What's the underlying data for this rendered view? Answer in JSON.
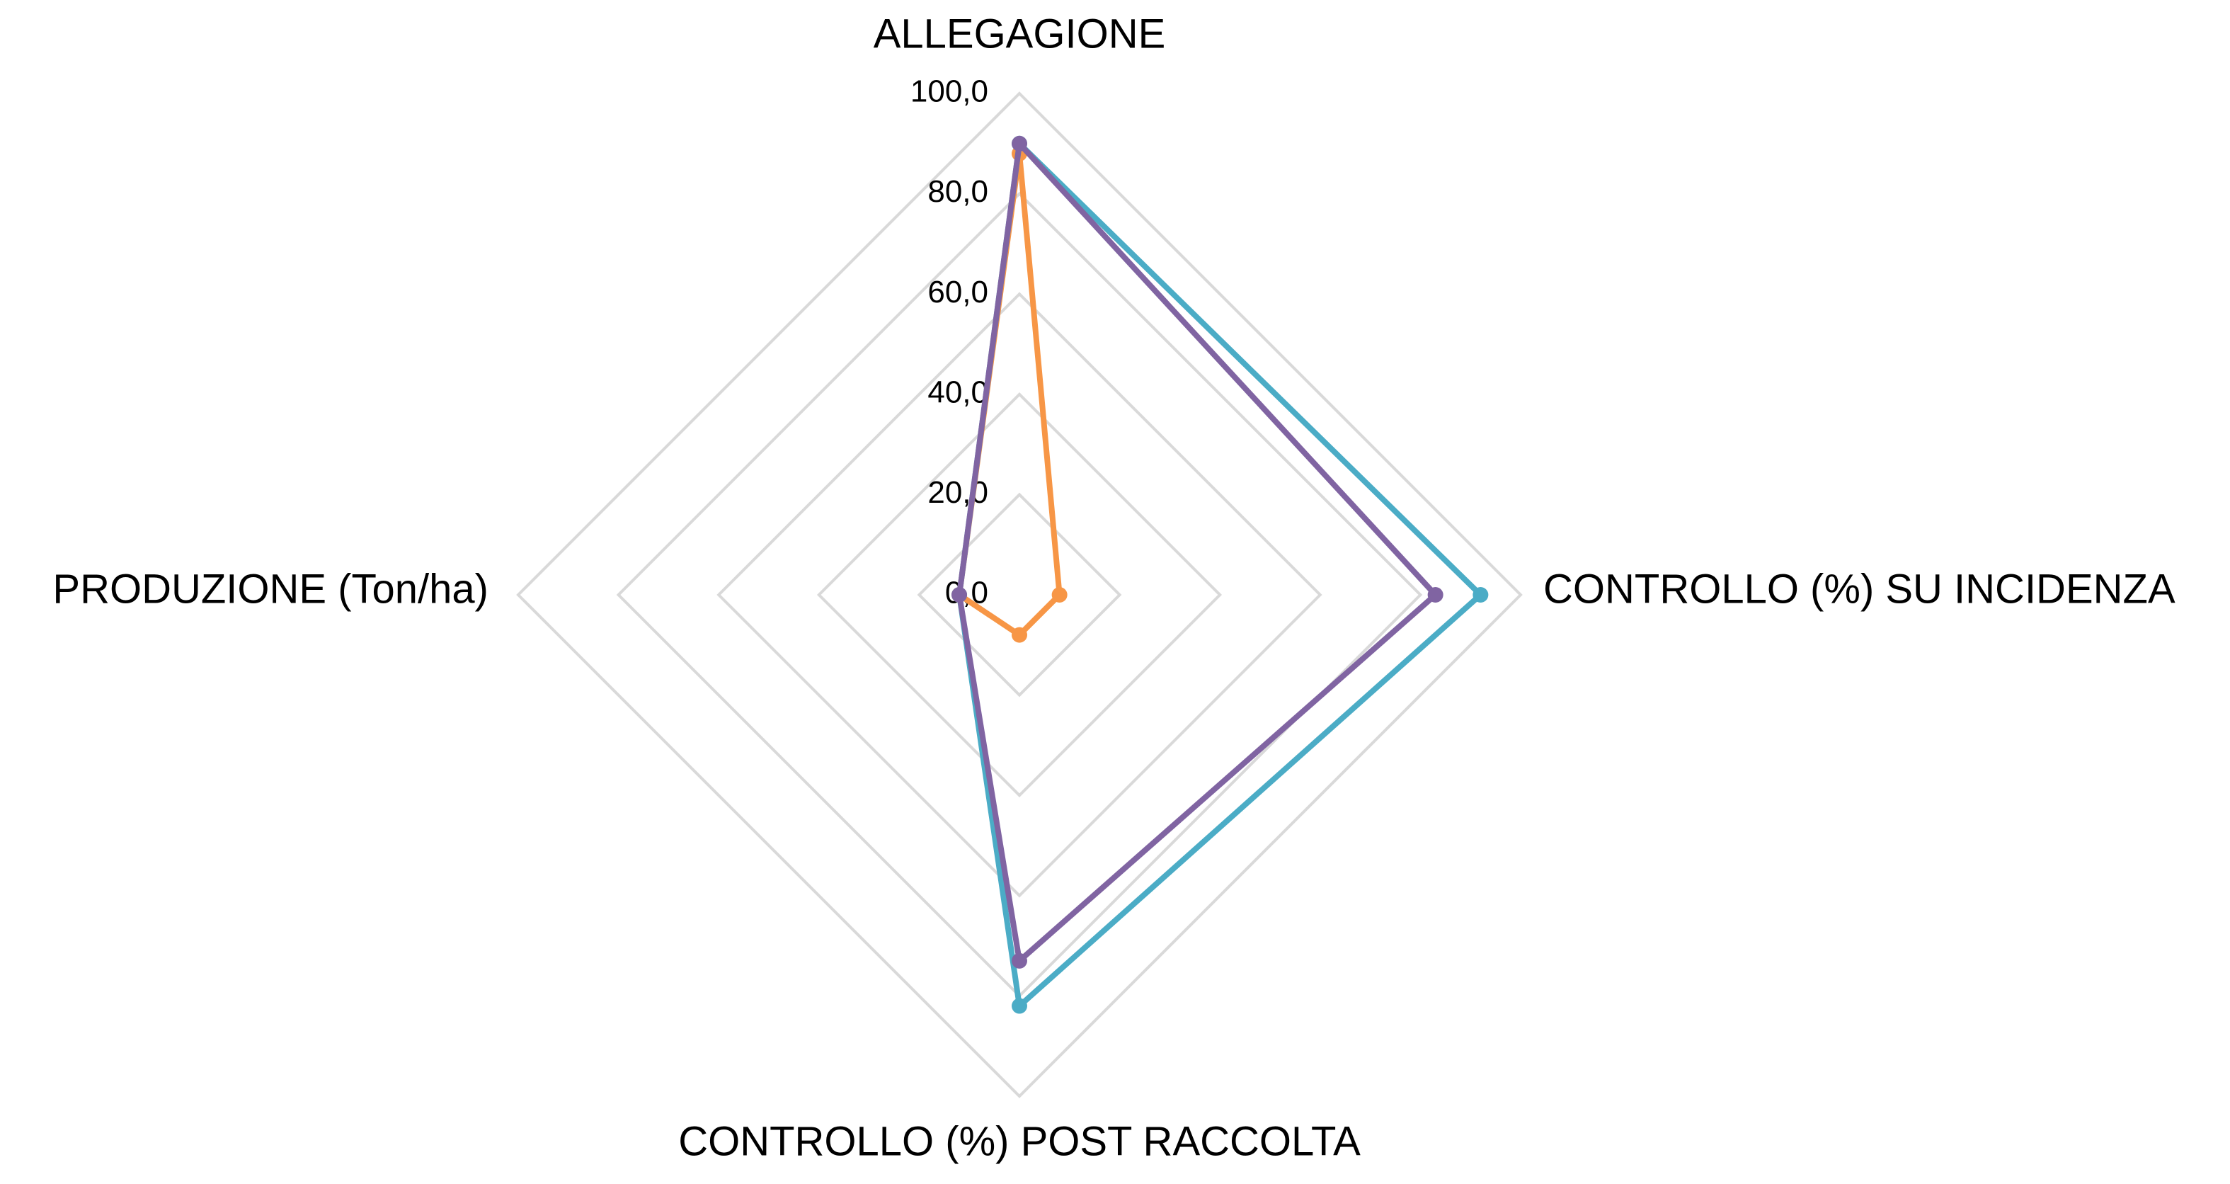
{
  "chart_data": {
    "type": "radar",
    "categories": [
      "ALLEGAGIONE",
      "CONTROLLO (%) SU INCIDENZA",
      "CONTROLLO (%) POST RACCOLTA",
      "PRODUZIONE (Ton/ha)"
    ],
    "series": [
      {
        "color": "#f79646",
        "values": [
          88,
          8,
          8,
          12
        ]
      },
      {
        "color": "#4bacc6",
        "values": [
          90,
          92,
          82,
          12
        ]
      },
      {
        "color": "#8064a2",
        "values": [
          90,
          83,
          73,
          12
        ]
      }
    ],
    "ylim": [
      0,
      100
    ],
    "yticks": [
      {
        "value": 0,
        "label": "0,0"
      },
      {
        "value": 20,
        "label": "20,0"
      },
      {
        "value": 40,
        "label": "40,0"
      },
      {
        "value": 60,
        "label": "60,0"
      },
      {
        "value": 80,
        "label": "80,0"
      },
      {
        "value": 100,
        "label": "100,0"
      }
    ],
    "grid": true
  }
}
